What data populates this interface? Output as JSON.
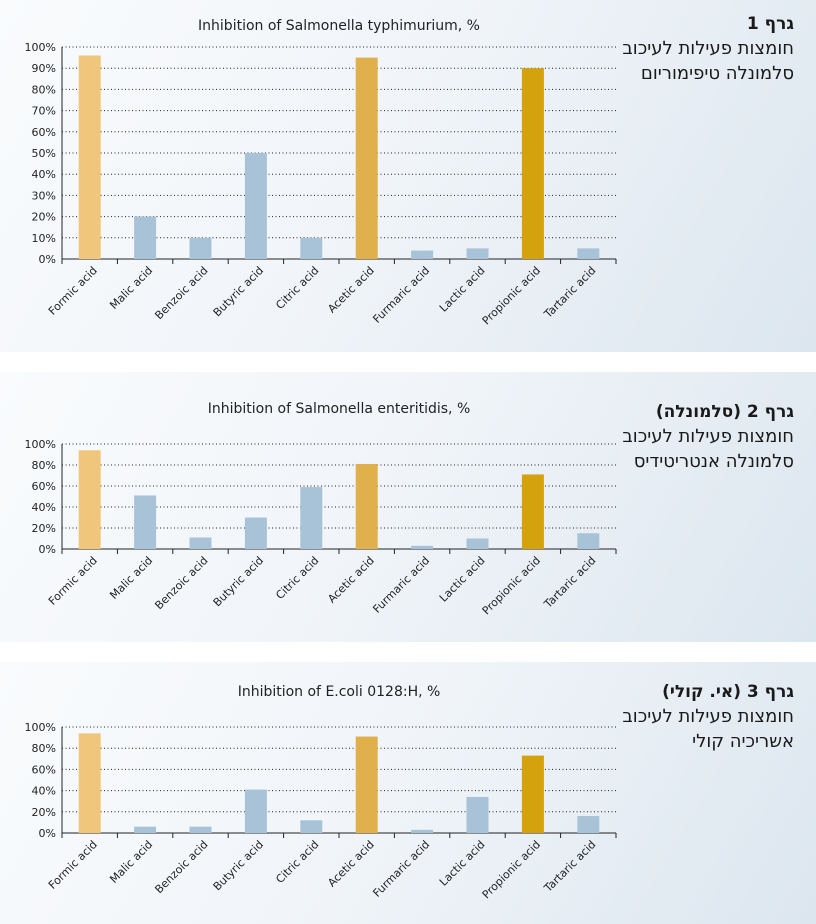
{
  "colors": {
    "light_yellow": "#efc67c",
    "medium_yellow": "#e0b04d",
    "dark_yellow": "#d4a20c",
    "blue_gray": "#a8c3d8",
    "grid": "#222222"
  },
  "charts": [
    {
      "heading": "גרף 1",
      "description": "חומצות פעילות לעיכוב סלמונלה טיפימוריום",
      "chart_data": {
        "type": "bar",
        "title": "Inhibition of Salmonella typhimurium, %",
        "categories": [
          "Formic acid",
          "Malic acid",
          "Benzoic acid",
          "Butyric acid",
          "Citric acid",
          "Acetic acid",
          "Furmaric acid",
          "Lactic acid",
          "Propionic acid",
          "Tartaric acid"
        ],
        "values": [
          96,
          20,
          10,
          50,
          10,
          95,
          4,
          5,
          90,
          5
        ],
        "bar_colors": [
          "light_yellow",
          "blue_gray",
          "blue_gray",
          "blue_gray",
          "blue_gray",
          "medium_yellow",
          "blue_gray",
          "blue_gray",
          "dark_yellow",
          "blue_gray"
        ],
        "y_ticks": [
          "0%",
          "10%",
          "20%",
          "30%",
          "40%",
          "50%",
          "60%",
          "70%",
          "80%",
          "90%",
          "100%"
        ],
        "ylim": [
          0,
          100
        ],
        "grid": true
      }
    },
    {
      "heading": "גרף 2 (סלמונלה)",
      "description": "חומצות פעילות לעיכוב סלמונלה אנטריטידיס",
      "chart_data": {
        "type": "bar",
        "title": "Inhibition of Salmonella enteritidis, %",
        "categories": [
          "Formic acid",
          "Malic acid",
          "Benzoic acid",
          "Butyric acid",
          "Citric acid",
          "Acetic acid",
          "Furmaric acid",
          "Lactic acid",
          "Propionic acid",
          "Tartaric acid"
        ],
        "values": [
          94,
          51,
          11,
          30,
          59,
          81,
          3,
          10,
          71,
          15
        ],
        "bar_colors": [
          "light_yellow",
          "blue_gray",
          "blue_gray",
          "blue_gray",
          "blue_gray",
          "medium_yellow",
          "blue_gray",
          "blue_gray",
          "dark_yellow",
          "blue_gray"
        ],
        "y_ticks": [
          "0%",
          "20%",
          "40%",
          "60%",
          "80%",
          "100%"
        ],
        "ylim": [
          0,
          100
        ],
        "grid": true
      }
    },
    {
      "heading": "גרף 3 (אי. קולי)",
      "description": "חומצות פעילות לעיכוב אשריכיה קולי",
      "chart_data": {
        "type": "bar",
        "title": "Inhibition of E.coli 0128:H, %",
        "categories": [
          "Formic acid",
          "Malic acid",
          "Benzoic acid",
          "Butyric acid",
          "Citric acid",
          "Acetic acid",
          "Furmaric acid",
          "Lactic acid",
          "Propionic acid",
          "Tartaric acid"
        ],
        "values": [
          94,
          6,
          6,
          41,
          12,
          91,
          3,
          34,
          73,
          16
        ],
        "bar_colors": [
          "light_yellow",
          "blue_gray",
          "blue_gray",
          "blue_gray",
          "blue_gray",
          "medium_yellow",
          "blue_gray",
          "blue_gray",
          "dark_yellow",
          "blue_gray"
        ],
        "y_ticks": [
          "0%",
          "20%",
          "40%",
          "60%",
          "80%",
          "100%"
        ],
        "ylim": [
          0,
          100
        ],
        "grid": true
      }
    }
  ]
}
